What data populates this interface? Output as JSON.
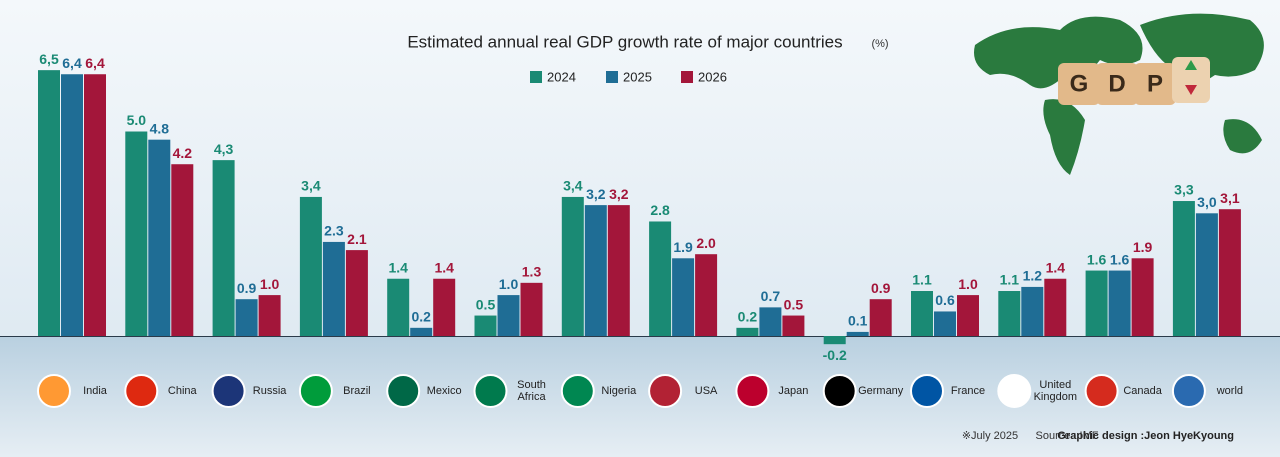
{
  "chart_data": {
    "type": "bar",
    "title": "Estimated annual real GDP growth rate of major countries",
    "unit": "(%)",
    "categories": [
      "India",
      "China",
      "Russia",
      "Brazil",
      "Mexico",
      "South Africa",
      "Nigeria",
      "USA",
      "Japan",
      "Germany",
      "France",
      "United Kingdom",
      "Canada",
      "world"
    ],
    "series": [
      {
        "name": "2024",
        "color": "#1a8a74",
        "values": [
          6.5,
          5.0,
          4.3,
          3.4,
          1.4,
          0.5,
          3.4,
          2.8,
          0.2,
          -0.2,
          1.1,
          1.1,
          1.6,
          3.3
        ],
        "value_labels": [
          "6,5",
          "5.0",
          "4,3",
          "3,4",
          "1.4",
          "0.5",
          "3,4",
          "2.8",
          "0.2",
          "-0.2",
          "1.1",
          "1.1",
          "1.6",
          "3,3"
        ]
      },
      {
        "name": "2025",
        "color": "#1f6d95",
        "values": [
          6.4,
          4.8,
          0.9,
          2.3,
          0.2,
          1.0,
          3.2,
          1.9,
          0.7,
          0.1,
          0.6,
          1.2,
          1.6,
          3.0
        ],
        "value_labels": [
          "6,4",
          "4.8",
          "0.9",
          "2.3",
          "0.2",
          "1.0",
          "3,2",
          "1.9",
          "0.7",
          "0.1",
          "0.6",
          "1.2",
          "1.6",
          "3,0"
        ]
      },
      {
        "name": "2026",
        "color": "#a3163a",
        "values": [
          6.4,
          4.2,
          1.0,
          2.1,
          1.4,
          1.3,
          3.2,
          2.0,
          0.5,
          0.9,
          1.0,
          1.4,
          1.9,
          3.1
        ],
        "value_labels": [
          "6,4",
          "4.2",
          "1.0",
          "2.1",
          "1.4",
          "1.3",
          "3,2",
          "2.0",
          "0.5",
          "0.9",
          "1.0",
          "1.4",
          "1.9",
          "3,1"
        ]
      }
    ],
    "graphic_letters": [
      "G",
      "D",
      "P"
    ],
    "notes": [
      "※July 2025",
      "Source : IMF",
      "Graphic design :Jeon HyeKyoung"
    ]
  }
}
